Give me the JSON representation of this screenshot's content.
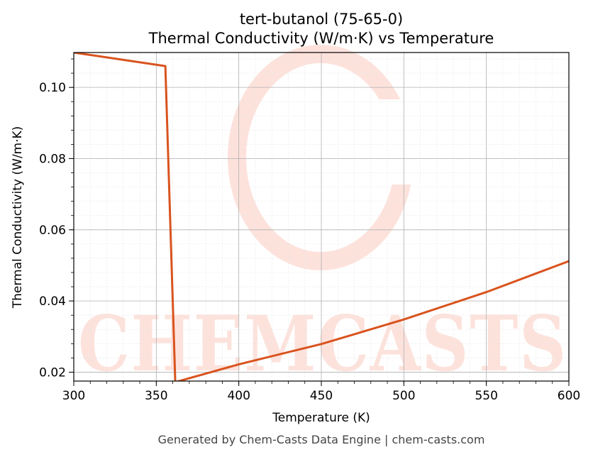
{
  "chart_data": {
    "type": "line",
    "title": "tert-butanol (75-65-0)",
    "subtitle": "Thermal Conductivity (W/m·K) vs Temperature",
    "xlabel": "Temperature (K)",
    "ylabel": "Thermal Conductivity (W/m·K)",
    "xlim": [
      300,
      600
    ],
    "ylim": [
      0.0175,
      0.1098
    ],
    "x_ticks": [
      300,
      350,
      400,
      450,
      500,
      550,
      600
    ],
    "y_ticks": [
      0.02,
      0.04,
      0.06,
      0.08,
      0.1
    ],
    "y_tick_labels": [
      "0.02",
      "0.04",
      "0.06",
      "0.08",
      "0.10"
    ],
    "grid": true,
    "line_color": "#d9531e",
    "series": [
      {
        "x": [
          300,
          355.5,
          361.5,
          400,
          450,
          500,
          550,
          600
        ],
        "y": [
          0.1098,
          0.106,
          0.0172,
          0.0222,
          0.0279,
          0.0348,
          0.0425,
          0.0512
        ]
      }
    ]
  },
  "watermark": {
    "text": "CHEMCASTS"
  },
  "footer": "Generated by Chem-Casts Data Engine | chem-casts.com"
}
